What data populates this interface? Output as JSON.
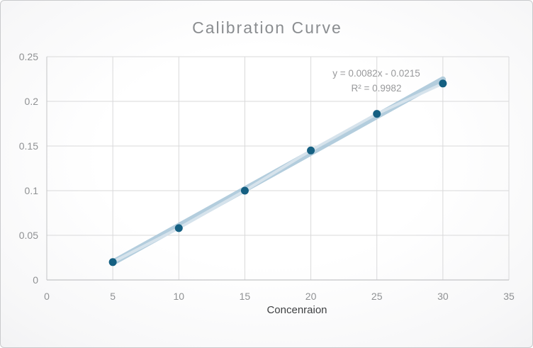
{
  "chart": {
    "title": "Calibration Curve",
    "x_axis_title": "Concenraion",
    "annotation": {
      "equation": "y = 0.0082x - 0.0215",
      "r_squared": "R² = 0.9982"
    }
  },
  "chart_data": {
    "type": "scatter",
    "title": "Calibration Curve",
    "xlabel": "Concenraion",
    "ylabel": "",
    "x": [
      5,
      10,
      15,
      20,
      25,
      30
    ],
    "y": [
      0.02,
      0.058,
      0.1,
      0.145,
      0.186,
      0.22
    ],
    "xlim": [
      0,
      35
    ],
    "ylim": [
      0,
      0.25
    ],
    "xticks": [
      0,
      5,
      10,
      15,
      20,
      25,
      30,
      35
    ],
    "yticks": [
      0,
      0.05,
      0.1,
      0.15,
      0.2,
      0.25
    ],
    "xtick_labels": [
      "0",
      "5",
      "10",
      "15",
      "20",
      "25",
      "30",
      "35"
    ],
    "ytick_labels": [
      "0",
      "0.05",
      "0.1",
      "0.15",
      "0.2",
      "0.25"
    ],
    "grid": true,
    "legend": "none",
    "trendline": {
      "slope": 0.0082,
      "intercept": -0.0215,
      "equation_label": "y = 0.0082x - 0.0215",
      "r2_label": "R² = 0.9982"
    },
    "colors": {
      "marker": "#156082",
      "trendline": "#a6c5d8",
      "series_line": "#d8e4ec",
      "gridline": "#d9d9da",
      "axis_line": "#c3c4c6",
      "tick_label": "#8f9193",
      "title": "#8a8d90",
      "annotation_text": "#98999b",
      "axis_title_text": "#3d3f41"
    }
  }
}
